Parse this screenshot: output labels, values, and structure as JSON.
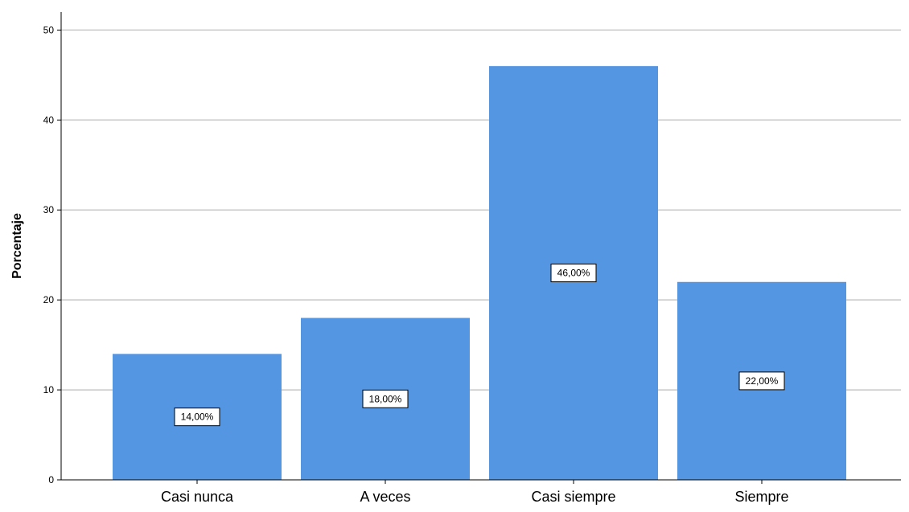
{
  "chart_data": {
    "type": "bar",
    "ylabel": "Porcentaje",
    "xlabel": "",
    "categories": [
      "Casi nunca",
      "A veces",
      "Casi siempre",
      "Siempre"
    ],
    "values": [
      14,
      18,
      46,
      22
    ],
    "data_labels": [
      "14,00%",
      "18,00%",
      "46,00%",
      "22,00%"
    ],
    "ylim": [
      0,
      52
    ],
    "yticks": [
      0,
      10,
      20,
      30,
      40,
      50
    ],
    "ytick_labels": [
      "0",
      "10",
      "20",
      "30",
      "40",
      "50"
    ],
    "grid": true,
    "bar_color": "#5596e3",
    "grid_color": "#c8c8c8"
  }
}
